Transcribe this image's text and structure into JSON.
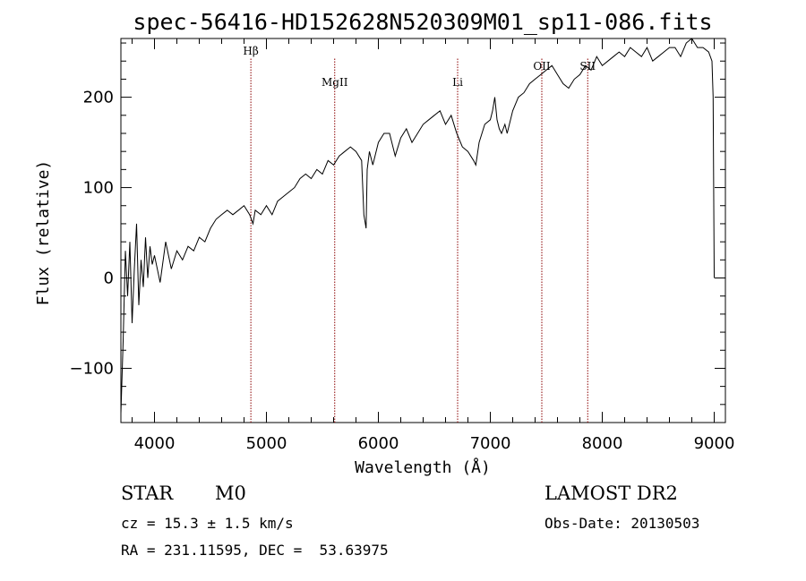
{
  "chart_data": {
    "type": "line",
    "title": "spec-56416-HD152628N520309M01_sp11-086.fits",
    "xlabel": "Wavelength (Å)",
    "ylabel": "Flux (relative)",
    "xlim": [
      3700,
      9100
    ],
    "ylim": [
      -160,
      265
    ],
    "x_ticks": [
      4000,
      5000,
      6000,
      7000,
      8000,
      9000
    ],
    "x_tick_labels": [
      "4000",
      "5000",
      "6000",
      "7000",
      "8000",
      "9000"
    ],
    "y_ticks": [
      -100,
      0,
      100,
      200
    ],
    "y_tick_labels": [
      "−100",
      "0",
      "100",
      "200"
    ],
    "grid": false,
    "line_color": "#000000",
    "marker_color": "#8b0000",
    "lines": [
      {
        "label": "Hβ",
        "x": 4861
      },
      {
        "label": "MgII",
        "x": 5610
      },
      {
        "label": "Li",
        "x": 6708
      },
      {
        "label": "OII",
        "x": 7460
      },
      {
        "label": "SII",
        "x": 7870
      }
    ],
    "series": [
      {
        "x": [
          3700,
          3720,
          3740,
          3760,
          3780,
          3800,
          3820,
          3840,
          3860,
          3880,
          3900,
          3920,
          3940,
          3960,
          3980,
          4000,
          4050,
          4100,
          4150,
          4200,
          4250,
          4300,
          4350,
          4400,
          4450,
          4500,
          4550,
          4600,
          4650,
          4700,
          4750,
          4800,
          4850,
          4880,
          4900,
          4950,
          5000,
          5050,
          5100,
          5150,
          5200,
          5250,
          5300,
          5350,
          5400,
          5450,
          5500,
          5550,
          5600,
          5650,
          5700,
          5750,
          5800,
          5850,
          5870,
          5890,
          5900,
          5920,
          5950,
          6000,
          6050,
          6100,
          6150,
          6200,
          6250,
          6300,
          6350,
          6400,
          6450,
          6500,
          6550,
          6600,
          6650,
          6700,
          6750,
          6800,
          6850,
          6870,
          6900,
          6950,
          7000,
          7020,
          7040,
          7060,
          7080,
          7100,
          7130,
          7150,
          7200,
          7250,
          7300,
          7350,
          7400,
          7450,
          7500,
          7550,
          7600,
          7650,
          7700,
          7750,
          7800,
          7850,
          7900,
          7950,
          8000,
          8050,
          8100,
          8150,
          8200,
          8250,
          8300,
          8350,
          8400,
          8450,
          8500,
          8550,
          8600,
          8650,
          8700,
          8750,
          8800,
          8850,
          8900,
          8950,
          8980,
          8990,
          9000
        ],
        "y": [
          -150,
          -70,
          30,
          -20,
          40,
          -50,
          10,
          60,
          -30,
          20,
          -10,
          45,
          0,
          35,
          15,
          25,
          -5,
          40,
          10,
          30,
          20,
          35,
          30,
          45,
          40,
          55,
          65,
          70,
          75,
          70,
          75,
          80,
          70,
          60,
          75,
          70,
          80,
          70,
          85,
          90,
          95,
          100,
          110,
          115,
          110,
          120,
          115,
          130,
          125,
          135,
          140,
          145,
          140,
          130,
          70,
          55,
          120,
          140,
          125,
          150,
          160,
          160,
          135,
          155,
          165,
          150,
          160,
          170,
          175,
          180,
          185,
          170,
          180,
          160,
          145,
          140,
          130,
          125,
          150,
          170,
          175,
          185,
          200,
          175,
          165,
          160,
          170,
          160,
          185,
          200,
          205,
          215,
          220,
          225,
          230,
          235,
          225,
          215,
          210,
          220,
          225,
          235,
          230,
          245,
          235,
          240,
          245,
          250,
          245,
          255,
          250,
          245,
          255,
          240,
          245,
          250,
          255,
          255,
          245,
          260,
          265,
          255,
          255,
          250,
          240,
          200,
          0
        ]
      }
    ]
  }
}
